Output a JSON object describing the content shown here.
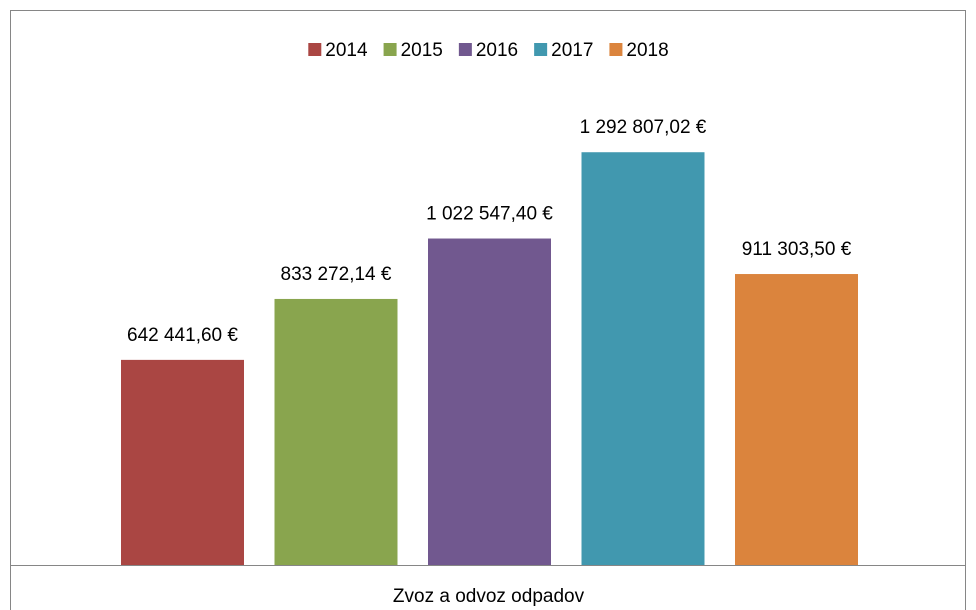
{
  "chart_data": {
    "type": "bar",
    "categories": [
      "Zvoz a odvoz odpadov"
    ],
    "series": [
      {
        "name": "2014",
        "color": "#aa4643",
        "values": [
          642441.6
        ],
        "value_labels": [
          "642 441,60 €"
        ]
      },
      {
        "name": "2015",
        "color": "#89a54e",
        "values": [
          833272.14
        ],
        "value_labels": [
          "833 272,14 €"
        ]
      },
      {
        "name": "2016",
        "color": "#71588f",
        "values": [
          1022547.4
        ],
        "value_labels": [
          "1 022 547,40 €"
        ]
      },
      {
        "name": "2017",
        "color": "#4198af",
        "values": [
          1292807.02
        ],
        "value_labels": [
          "1 292 807,02 €"
        ]
      },
      {
        "name": "2018",
        "color": "#db843d",
        "values": [
          911303.5
        ],
        "value_labels": [
          "911 303,50 €"
        ]
      }
    ],
    "ylim": [
      0,
      1400000
    ],
    "legend": "top"
  }
}
